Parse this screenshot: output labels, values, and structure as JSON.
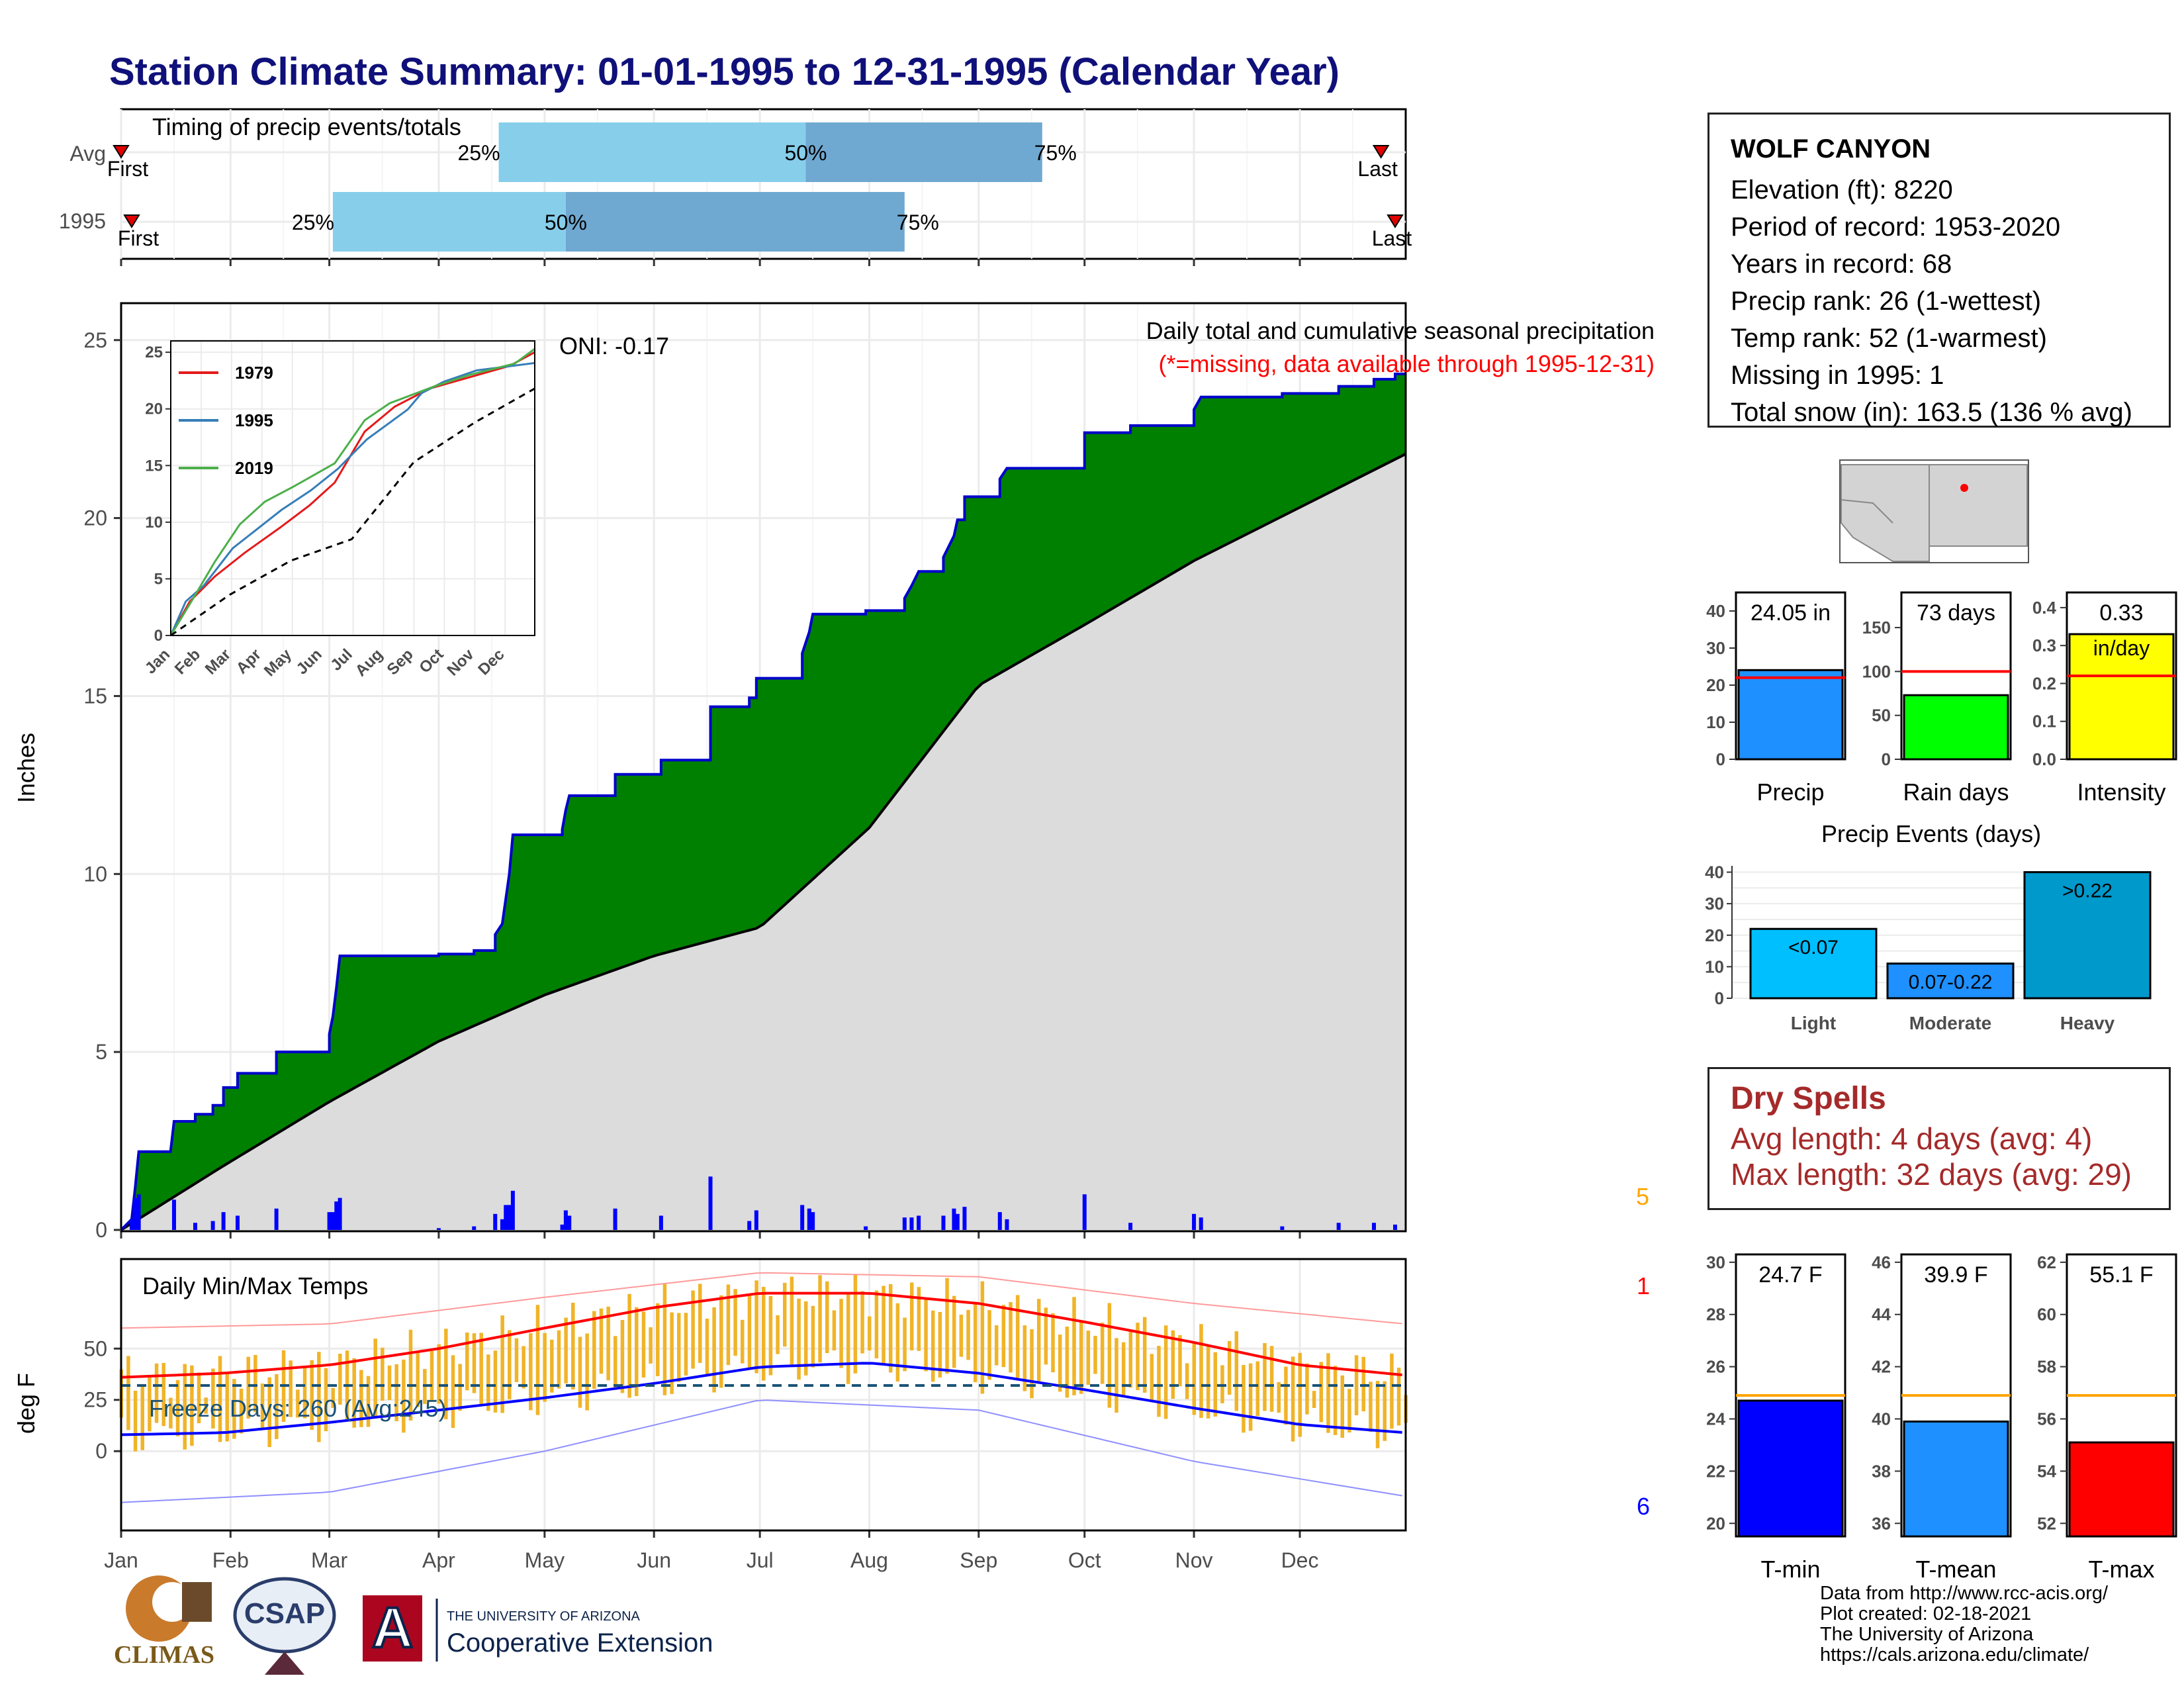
{
  "page": {
    "title": "Station Climate Summary: 01-01-1995 to 12-31-1995 (Calendar Year)"
  },
  "station": {
    "name": "WOLF CANYON",
    "lines": [
      "Elevation (ft): 8220",
      "Period of record: 1953-2020",
      "Years in record: 68",
      "Precip rank: 26 (1-wettest)",
      "Temp rank: 52 (1-warmest)",
      "Missing in 1995: 1",
      "Total snow (in): 163.5 (136 % avg)"
    ]
  },
  "colors": {
    "precip_fill": "#008000",
    "cumulative_line": "#0000cc",
    "avg_fill": "#dcdcdc",
    "timing_light": "#87ceeb",
    "timing_dark": "#6fa8d0",
    "temp_bar": "#f0b429",
    "tmax_line": "#ff0000",
    "tmin_line": "#0000ff",
    "dry_text": "#a52a2a"
  },
  "chart_data": [
    {
      "id": "timing",
      "type": "bar",
      "title": "Timing of precip events/totals",
      "categories": [
        "Avg",
        "1995"
      ],
      "x_unit": "day of year",
      "xlim": [
        1,
        365
      ],
      "rows": [
        {
          "label": "Avg",
          "first": 1,
          "p25": 108,
          "p50": 195,
          "p75": 262,
          "last": 358
        },
        {
          "label": "1995",
          "first": 4,
          "p25": 61,
          "p50": 127,
          "p75": 223,
          "last": 362
        }
      ],
      "marker_labels": {
        "first": "First",
        "last": "Last",
        "p25": "25%",
        "p50": "50%",
        "p75": "75%"
      }
    },
    {
      "id": "cumulative-precip",
      "type": "area",
      "title": "Daily total and cumulative seasonal precipitation",
      "subtitle": "(*=missing, data available through 1995-12-31)",
      "annotation": "ONI: -0.17",
      "ylabel": "Inches",
      "ylim": [
        0,
        26
      ],
      "yticks": [
        0,
        5,
        10,
        15,
        20,
        25
      ],
      "xlim": [
        1,
        365
      ],
      "xticks": [
        {
          "day": 1,
          "label": "Jan"
        },
        {
          "day": 32,
          "label": "Feb"
        },
        {
          "day": 60,
          "label": "Mar"
        },
        {
          "day": 91,
          "label": "Apr"
        },
        {
          "day": 121,
          "label": "May"
        },
        {
          "day": 152,
          "label": "Jun"
        },
        {
          "day": 182,
          "label": "Jul"
        },
        {
          "day": 213,
          "label": "Aug"
        },
        {
          "day": 244,
          "label": "Sep"
        },
        {
          "day": 274,
          "label": "Oct"
        },
        {
          "day": 305,
          "label": "Nov"
        },
        {
          "day": 335,
          "label": "Dec"
        }
      ],
      "series": [
        {
          "name": "1995",
          "steps": [
            [
              1,
              0
            ],
            [
              4,
              0.3
            ],
            [
              5,
              1.2
            ],
            [
              6,
              2.2
            ],
            [
              15,
              2.2
            ],
            [
              16,
              3.05
            ],
            [
              22,
              3.05
            ],
            [
              22,
              3.25
            ],
            [
              27,
              3.25
            ],
            [
              27,
              3.5
            ],
            [
              30,
              3.5
            ],
            [
              30,
              4.0
            ],
            [
              34,
              4.0
            ],
            [
              34,
              4.4
            ],
            [
              45,
              4.4
            ],
            [
              45,
              5.0
            ],
            [
              60,
              5.0
            ],
            [
              60,
              5.5
            ],
            [
              61,
              6.0
            ],
            [
              62,
              6.8
            ],
            [
              63,
              7.7
            ],
            [
              91,
              7.7
            ],
            [
              91,
              7.75
            ],
            [
              101,
              7.75
            ],
            [
              101,
              7.85
            ],
            [
              107,
              7.85
            ],
            [
              107,
              8.3
            ],
            [
              109,
              8.6
            ],
            [
              110,
              9.3
            ],
            [
              111,
              10.0
            ],
            [
              112,
              11.1
            ],
            [
              126,
              11.1
            ],
            [
              126,
              11.25
            ],
            [
              127,
              11.8
            ],
            [
              128,
              12.2
            ],
            [
              141,
              12.2
            ],
            [
              141,
              12.8
            ],
            [
              154,
              12.8
            ],
            [
              154,
              13.2
            ],
            [
              168,
              13.2
            ],
            [
              168,
              14.7
            ],
            [
              179,
              14.7
            ],
            [
              179,
              14.95
            ],
            [
              181,
              14.95
            ],
            [
              181,
              15.5
            ],
            [
              194,
              15.5
            ],
            [
              194,
              16.2
            ],
            [
              196,
              16.8
            ],
            [
              197,
              17.3
            ],
            [
              212,
              17.3
            ],
            [
              212,
              17.4
            ],
            [
              223,
              17.4
            ],
            [
              223,
              17.75
            ],
            [
              225,
              18.1
            ],
            [
              227,
              18.5
            ],
            [
              234,
              18.5
            ],
            [
              234,
              18.9
            ],
            [
              237,
              19.5
            ],
            [
              238,
              19.95
            ],
            [
              240,
              19.95
            ],
            [
              240,
              20.6
            ],
            [
              250,
              20.6
            ],
            [
              250,
              21.1
            ],
            [
              252,
              21.4
            ],
            [
              274,
              21.4
            ],
            [
              274,
              22.4
            ],
            [
              287,
              22.4
            ],
            [
              287,
              22.6
            ],
            [
              305,
              22.6
            ],
            [
              305,
              23.05
            ],
            [
              307,
              23.4
            ],
            [
              330,
              23.4
            ],
            [
              330,
              23.5
            ],
            [
              346,
              23.5
            ],
            [
              346,
              23.7
            ],
            [
              356,
              23.7
            ],
            [
              356,
              23.9
            ],
            [
              362,
              23.9
            ],
            [
              362,
              24.05
            ],
            [
              365,
              24.05
            ]
          ]
        },
        {
          "name": "Average",
          "points": [
            [
              1,
              0
            ],
            [
              30,
              1.8
            ],
            [
              60,
              3.6
            ],
            [
              91,
              5.3
            ],
            [
              121,
              6.6
            ],
            [
              152,
              7.7
            ],
            [
              182,
              8.5
            ],
            [
              213,
              11.3
            ],
            [
              244,
              15.3
            ],
            [
              274,
              17.0
            ],
            [
              305,
              18.8
            ],
            [
              335,
              20.3
            ],
            [
              365,
              21.8
            ]
          ]
        }
      ],
      "daily_counter": "5"
    },
    {
      "id": "inset-cumulative",
      "type": "line",
      "ylim": [
        0,
        26
      ],
      "yticks": [
        0,
        5,
        10,
        15,
        20,
        25
      ],
      "xticks": [
        "Jan",
        "Feb",
        "Mar",
        "Apr",
        "May",
        "Jun",
        "Jul",
        "Aug",
        "Sep",
        "Oct",
        "Nov",
        "Dec"
      ],
      "series": [
        {
          "name": "1979",
          "color": "#e41a1c",
          "points": [
            [
              1,
              0
            ],
            [
              20,
              3.0
            ],
            [
              45,
              5.2
            ],
            [
              75,
              7.3
            ],
            [
              110,
              9.5
            ],
            [
              140,
              11.5
            ],
            [
              165,
              13.5
            ],
            [
              195,
              18.0
            ],
            [
              225,
              20.2
            ],
            [
              260,
              21.8
            ],
            [
              300,
              22.8
            ],
            [
              340,
              23.8
            ],
            [
              365,
              25.0
            ]
          ]
        },
        {
          "name": "1995",
          "color": "#377eb8",
          "points": [
            [
              1,
              0
            ],
            [
              16,
              3.0
            ],
            [
              34,
              4.4
            ],
            [
              63,
              7.7
            ],
            [
              112,
              11.1
            ],
            [
              141,
              12.8
            ],
            [
              168,
              14.7
            ],
            [
              197,
              17.3
            ],
            [
              238,
              19.95
            ],
            [
              252,
              21.4
            ],
            [
              274,
              22.4
            ],
            [
              307,
              23.4
            ],
            [
              365,
              24.05
            ]
          ]
        },
        {
          "name": "2019",
          "color": "#4daf4a",
          "points": [
            [
              1,
              0
            ],
            [
              25,
              3.5
            ],
            [
              45,
              6.5
            ],
            [
              70,
              9.8
            ],
            [
              95,
              11.8
            ],
            [
              125,
              13.2
            ],
            [
              165,
              15.2
            ],
            [
              195,
              19.0
            ],
            [
              220,
              20.5
            ],
            [
              265,
              22.0
            ],
            [
              300,
              23.0
            ],
            [
              345,
              24.0
            ],
            [
              365,
              25.3
            ]
          ]
        },
        {
          "name": "Average",
          "color": "#000000",
          "dash": true,
          "points": [
            [
              1,
              0
            ],
            [
              60,
              3.6
            ],
            [
              121,
              6.6
            ],
            [
              182,
              8.5
            ],
            [
              244,
              15.3
            ],
            [
              305,
              18.8
            ],
            [
              365,
              21.8
            ]
          ]
        }
      ]
    },
    {
      "id": "temps",
      "type": "line",
      "title": "Daily Min/Max Temps",
      "annotation": "Freeze Days: 260 (Avg:245)",
      "ylabel": "deg F",
      "ylim": [
        -38,
        93
      ],
      "yticks": [
        0,
        25,
        50
      ],
      "freeze_line": 32,
      "counter_top": "1",
      "counter_bottom": "6",
      "avg_max": [
        [
          1,
          36
        ],
        [
          30,
          38
        ],
        [
          60,
          42
        ],
        [
          91,
          50
        ],
        [
          121,
          60
        ],
        [
          152,
          70
        ],
        [
          182,
          77
        ],
        [
          213,
          77
        ],
        [
          244,
          72
        ],
        [
          274,
          63
        ],
        [
          305,
          53
        ],
        [
          335,
          42
        ],
        [
          365,
          37
        ]
      ],
      "avg_min": [
        [
          1,
          8
        ],
        [
          30,
          9
        ],
        [
          60,
          14
        ],
        [
          91,
          20
        ],
        [
          121,
          26
        ],
        [
          152,
          33
        ],
        [
          182,
          41
        ],
        [
          213,
          43
        ],
        [
          244,
          38
        ],
        [
          274,
          30
        ],
        [
          305,
          21
        ],
        [
          335,
          13
        ],
        [
          365,
          9
        ]
      ],
      "record_max": [
        [
          1,
          60
        ],
        [
          60,
          62
        ],
        [
          121,
          75
        ],
        [
          182,
          87
        ],
        [
          244,
          85
        ],
        [
          305,
          72
        ],
        [
          365,
          62
        ]
      ],
      "record_min": [
        [
          1,
          -25
        ],
        [
          60,
          -20
        ],
        [
          121,
          0
        ],
        [
          182,
          25
        ],
        [
          244,
          20
        ],
        [
          305,
          -5
        ],
        [
          365,
          -22
        ]
      ]
    },
    {
      "id": "totals",
      "type": "bar",
      "panels": [
        {
          "label": "Precip",
          "value": 24.05,
          "value_text": "24.05 in",
          "avg": 22.0,
          "ylim": [
            0,
            45
          ],
          "yticks": [
            0,
            10,
            20,
            30,
            40
          ],
          "color": "#1e90ff"
        },
        {
          "label": "Rain days",
          "value": 73,
          "value_text": "73 days",
          "avg": 100,
          "ylim": [
            0,
            190
          ],
          "yticks": [
            0,
            50,
            100,
            150
          ],
          "color": "#00ff00"
        },
        {
          "label": "Intensity",
          "value": 0.33,
          "value_text": "0.33",
          "unit_text": "in/day",
          "avg": 0.22,
          "ylim": [
            0,
            0.44
          ],
          "yticks": [
            "0.0",
            "0.1",
            "0.2",
            "0.3",
            "0.4"
          ],
          "color": "#ffff00"
        }
      ]
    },
    {
      "id": "precip-events",
      "type": "bar",
      "title": "Precip Events (days)",
      "categories": [
        "Light",
        "Moderate",
        "Heavy"
      ],
      "bar_labels": [
        "<0.07",
        "0.07-0.22",
        ">0.22"
      ],
      "values": [
        22,
        11,
        40
      ],
      "ylim": [
        0,
        42
      ],
      "yticks": [
        0,
        10,
        20,
        30,
        40
      ]
    },
    {
      "id": "temp-means",
      "type": "bar",
      "panels": [
        {
          "label": "T-min",
          "value": 24.7,
          "value_text": "24.7 F",
          "avg": 24.9,
          "ylim": [
            19.5,
            30.3
          ],
          "yticks": [
            20,
            22,
            24,
            26,
            28,
            30
          ],
          "color": "#0000ff"
        },
        {
          "label": "T-mean",
          "value": 39.9,
          "value_text": "39.9 F",
          "avg": 40.9,
          "ylim": [
            35.5,
            46.3
          ],
          "yticks": [
            36,
            38,
            40,
            42,
            44,
            46
          ],
          "color": "#1e90ff"
        },
        {
          "label": "T-max",
          "value": 55.1,
          "value_text": "55.1 F",
          "avg": 56.9,
          "ylim": [
            51.5,
            62.3
          ],
          "yticks": [
            52,
            54,
            56,
            58,
            60,
            62
          ],
          "color": "#ff0000"
        }
      ]
    }
  ],
  "dry_spells": {
    "title": "Dry Spells",
    "avg_length": "Avg length: 4 days (avg: 4)",
    "max_length": "Max length: 32 days (avg: 29)"
  },
  "logos": {
    "climas": "CLIMAS",
    "csap": "CSAP",
    "ua_small": "THE UNIVERSITY OF ARIZONA",
    "coop": "Cooperative Extension"
  },
  "credits": [
    "Data from http://www.rcc-acis.org/",
    "Plot created: 02-18-2021",
    "The University of Arizona",
    "https://cals.arizona.edu/climate/"
  ]
}
